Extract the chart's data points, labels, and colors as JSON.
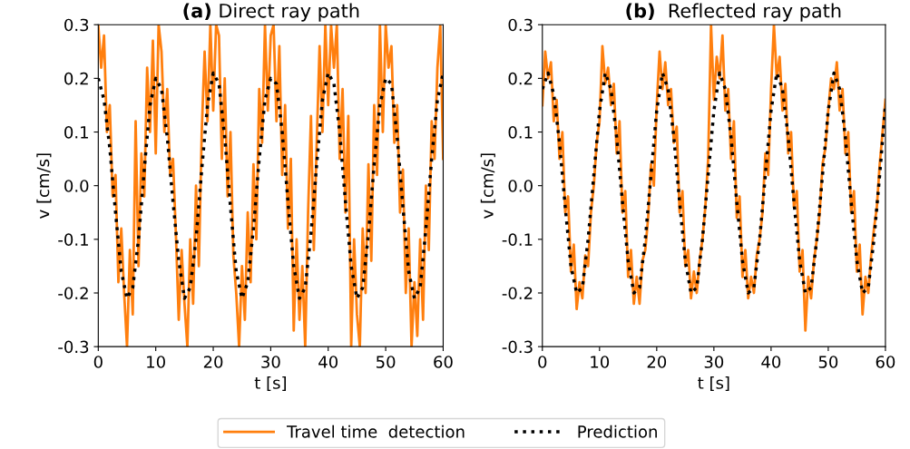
{
  "chart_data": [
    {
      "type": "line",
      "title": "(a) Direct ray path",
      "xlabel": "t [s]",
      "ylabel": "v [cm/s]",
      "xlim": [
        0,
        60
      ],
      "ylim": [
        -0.3,
        0.3
      ],
      "xticks": [
        0,
        10,
        20,
        30,
        40,
        50,
        60
      ],
      "yticks": [
        -0.3,
        -0.2,
        -0.1,
        {
          "value": 0,
          "label": "0.0"
        },
        0.1,
        0.2,
        0.3
      ],
      "legend": "bottom",
      "grid": false,
      "series": [
        {
          "name": "Travel time  detection",
          "color": "#ff7f0e",
          "line_style": "solid",
          "x": [
            0,
            0.5,
            1,
            1.5,
            2,
            2.5,
            3,
            3.5,
            4,
            4.5,
            5,
            5.5,
            6,
            6.5,
            7,
            7.5,
            8,
            8.5,
            9,
            9.5,
            10,
            10.5,
            11,
            11.5,
            12,
            12.5,
            13,
            13.5,
            14,
            14.5,
            15,
            15.5,
            16,
            16.5,
            17,
            17.5,
            18,
            18.5,
            19,
            19.5,
            20,
            20.5,
            21,
            21.5,
            22,
            22.5,
            23,
            23.5,
            24,
            24.5,
            25,
            25.5,
            26,
            26.5,
            27,
            27.5,
            28,
            28.5,
            29,
            29.5,
            30,
            30.5,
            31,
            31.5,
            32,
            32.5,
            33,
            33.5,
            34,
            34.5,
            35,
            35.5,
            36,
            36.5,
            37,
            37.5,
            38,
            38.5,
            39,
            39.5,
            40,
            40.5,
            41,
            41.5,
            42,
            42.5,
            43,
            43.5,
            44,
            44.5,
            45,
            45.5,
            46,
            46.5,
            47,
            47.5,
            48,
            48.5,
            49,
            49.5,
            50,
            50.5,
            51,
            51.5,
            52,
            52.5,
            53,
            53.5,
            54,
            54.5,
            55,
            55.5,
            56,
            56.5,
            57,
            57.5,
            58,
            58.5,
            59,
            59.5,
            60
          ],
          "values": [
            0.3,
            0.22,
            0.28,
            0.1,
            0.15,
            -0.02,
            0.02,
            -0.18,
            -0.08,
            -0.2,
            -0.3,
            -0.12,
            -0.24,
            0.12,
            -0.15,
            0.06,
            -0.02,
            0.22,
            0.1,
            0.27,
            0.06,
            0.3,
            0.25,
            0.1,
            0.18,
            0.02,
            0.05,
            -0.09,
            -0.25,
            -0.12,
            -0.22,
            -0.3,
            -0.1,
            -0.22,
            0.0,
            -0.15,
            0.1,
            0.25,
            0.12,
            0.3,
            0.14,
            0.3,
            0.28,
            0.05,
            0.2,
            -0.02,
            0.1,
            -0.13,
            -0.2,
            -0.3,
            -0.15,
            -0.25,
            -0.05,
            -0.18,
            0.04,
            -0.1,
            0.18,
            0.08,
            0.3,
            0.14,
            0.28,
            0.3,
            0.12,
            0.26,
            0.02,
            0.15,
            -0.08,
            0.05,
            -0.27,
            -0.1,
            -0.25,
            -0.15,
            -0.3,
            -0.05,
            0.13,
            -0.12,
            0.08,
            0.26,
            0.1,
            0.3,
            0.15,
            0.3,
            0.22,
            0.3,
            0.05,
            0.18,
            -0.05,
            0.13,
            -0.3,
            -0.1,
            -0.24,
            -0.3,
            -0.08,
            -0.2,
            0.04,
            -0.14,
            0.15,
            0.02,
            0.3,
            0.1,
            0.3,
            0.22,
            0.26,
            0.08,
            0.15,
            -0.05,
            0.03,
            -0.2,
            -0.08,
            -0.3,
            -0.18,
            -0.28,
            -0.1,
            -0.25,
            0.0,
            -0.12,
            0.12,
            0.05,
            0.22,
            0.3,
            0.05
          ]
        },
        {
          "name": "Prediction",
          "color": "#000000",
          "line_style": "dotted",
          "x": [
            0,
            1,
            2,
            3,
            4,
            5,
            6,
            7,
            8,
            9,
            10,
            11,
            12,
            13,
            14,
            15,
            16,
            17,
            18,
            19,
            20,
            21,
            22,
            23,
            24,
            25,
            26,
            27,
            28,
            29,
            30,
            31,
            32,
            33,
            34,
            35,
            36,
            37,
            38,
            39,
            40,
            41,
            42,
            43,
            44,
            45,
            46,
            47,
            48,
            49,
            50,
            51,
            52,
            53,
            54,
            55,
            56,
            57,
            58,
            59,
            60
          ],
          "values": [
            0.2,
            0.16,
            0.07,
            -0.05,
            -0.16,
            -0.21,
            -0.19,
            -0.1,
            0.03,
            0.15,
            0.2,
            0.18,
            0.09,
            -0.03,
            -0.14,
            -0.21,
            -0.19,
            -0.1,
            0.03,
            0.15,
            0.21,
            0.19,
            0.09,
            -0.04,
            -0.16,
            -0.21,
            -0.18,
            -0.08,
            0.05,
            0.16,
            0.2,
            0.19,
            0.1,
            -0.03,
            -0.15,
            -0.21,
            -0.19,
            -0.09,
            0.04,
            0.16,
            0.21,
            0.19,
            0.1,
            -0.03,
            -0.15,
            -0.21,
            -0.19,
            -0.09,
            0.04,
            0.15,
            0.2,
            0.19,
            0.09,
            -0.04,
            -0.16,
            -0.21,
            -0.19,
            -0.08,
            0.05,
            0.16,
            0.21
          ]
        }
      ]
    },
    {
      "type": "line",
      "title": "(b)  Reflected ray path",
      "xlabel": "t [s]",
      "ylabel": "v [cm/s]",
      "xlim": [
        0,
        60
      ],
      "ylim": [
        -0.3,
        0.3
      ],
      "xticks": [
        0,
        10,
        20,
        30,
        40,
        50,
        60
      ],
      "yticks": [
        -0.3,
        -0.2,
        -0.1,
        {
          "value": 0,
          "label": "0.0"
        },
        0.1,
        0.2,
        0.3
      ],
      "grid": false,
      "series": [
        {
          "color": "#ff7f0e",
          "line_style": "solid",
          "x": [
            0,
            0.5,
            1,
            1.5,
            2,
            2.5,
            3,
            3.5,
            4,
            4.5,
            5,
            5.5,
            6,
            6.5,
            7,
            7.5,
            8,
            8.5,
            9,
            9.5,
            10,
            10.5,
            11,
            11.5,
            12,
            12.5,
            13,
            13.5,
            14,
            14.5,
            15,
            15.5,
            16,
            16.5,
            17,
            17.5,
            18,
            18.5,
            19,
            19.5,
            20,
            20.5,
            21,
            21.5,
            22,
            22.5,
            23,
            23.5,
            24,
            24.5,
            25,
            25.5,
            26,
            26.5,
            27,
            27.5,
            28,
            28.5,
            29,
            29.5,
            30,
            30.5,
            31,
            31.5,
            32,
            32.5,
            33,
            33.5,
            34,
            34.5,
            35,
            35.5,
            36,
            36.5,
            37,
            37.5,
            38,
            38.5,
            39,
            39.5,
            40,
            40.5,
            41,
            41.5,
            42,
            42.5,
            43,
            43.5,
            44,
            44.5,
            45,
            45.5,
            46,
            46.5,
            47,
            47.5,
            48,
            48.5,
            49,
            49.5,
            50,
            50.5,
            51,
            51.5,
            52,
            52.5,
            53,
            53.5,
            54,
            54.5,
            55,
            55.5,
            56,
            56.5,
            57,
            57.5,
            58,
            58.5,
            59,
            59.5,
            60
          ],
          "values": [
            0.15,
            0.25,
            0.2,
            0.23,
            0.12,
            0.16,
            0.05,
            0.1,
            -0.05,
            -0.02,
            -0.16,
            -0.11,
            -0.23,
            -0.18,
            -0.21,
            -0.13,
            -0.15,
            -0.05,
            0.0,
            0.08,
            0.12,
            0.26,
            0.19,
            0.22,
            0.15,
            0.19,
            0.06,
            0.12,
            -0.05,
            -0.01,
            -0.17,
            -0.12,
            -0.22,
            -0.17,
            -0.22,
            -0.14,
            -0.12,
            -0.06,
            0.04,
            0.0,
            0.15,
            0.25,
            0.18,
            0.23,
            0.15,
            0.18,
            0.08,
            0.11,
            -0.05,
            -0.01,
            -0.15,
            -0.12,
            -0.21,
            -0.16,
            -0.2,
            -0.14,
            -0.1,
            -0.04,
            0.05,
            0.3,
            0.16,
            0.24,
            0.2,
            0.28,
            0.14,
            0.18,
            0.05,
            0.12,
            -0.06,
            -0.02,
            -0.17,
            -0.12,
            -0.21,
            -0.17,
            -0.2,
            -0.13,
            -0.1,
            -0.05,
            0.06,
            0.02,
            0.18,
            0.3,
            0.2,
            0.24,
            0.14,
            0.19,
            0.06,
            0.1,
            -0.04,
            -0.01,
            -0.16,
            -0.12,
            -0.27,
            -0.17,
            -0.21,
            -0.14,
            -0.1,
            -0.05,
            0.04,
            0.07,
            0.14,
            0.2,
            0.18,
            0.23,
            0.14,
            0.18,
            0.06,
            0.1,
            -0.05,
            -0.01,
            -0.16,
            -0.11,
            -0.24,
            -0.17,
            -0.2,
            -0.13,
            -0.08,
            -0.04,
            0.04,
            0.1,
            0.16
          ]
        },
        {
          "color": "#000000",
          "line_style": "dotted",
          "x": [
            0,
            1,
            2,
            3,
            4,
            5,
            6,
            7,
            8,
            9,
            10,
            11,
            12,
            13,
            14,
            15,
            16,
            17,
            18,
            19,
            20,
            21,
            22,
            23,
            24,
            25,
            26,
            27,
            28,
            29,
            30,
            31,
            32,
            33,
            34,
            35,
            36,
            37,
            38,
            39,
            40,
            41,
            42,
            43,
            44,
            45,
            46,
            47,
            48,
            49,
            50,
            51,
            52,
            53,
            54,
            55,
            56,
            57,
            58,
            59,
            60
          ],
          "values": [
            0.18,
            0.21,
            0.17,
            0.08,
            -0.04,
            -0.15,
            -0.2,
            -0.19,
            -0.1,
            0.02,
            0.14,
            0.21,
            0.18,
            0.09,
            -0.03,
            -0.14,
            -0.2,
            -0.19,
            -0.1,
            0.02,
            0.14,
            0.21,
            0.18,
            0.09,
            -0.03,
            -0.14,
            -0.2,
            -0.19,
            -0.1,
            0.02,
            0.14,
            0.21,
            0.18,
            0.09,
            -0.03,
            -0.14,
            -0.2,
            -0.19,
            -0.1,
            0.02,
            0.14,
            0.21,
            0.18,
            0.09,
            -0.03,
            -0.14,
            -0.2,
            -0.19,
            -0.1,
            0.02,
            0.14,
            0.21,
            0.18,
            0.09,
            -0.03,
            -0.14,
            -0.2,
            -0.19,
            -0.1,
            0.02,
            0.15
          ]
        }
      ]
    }
  ]
}
